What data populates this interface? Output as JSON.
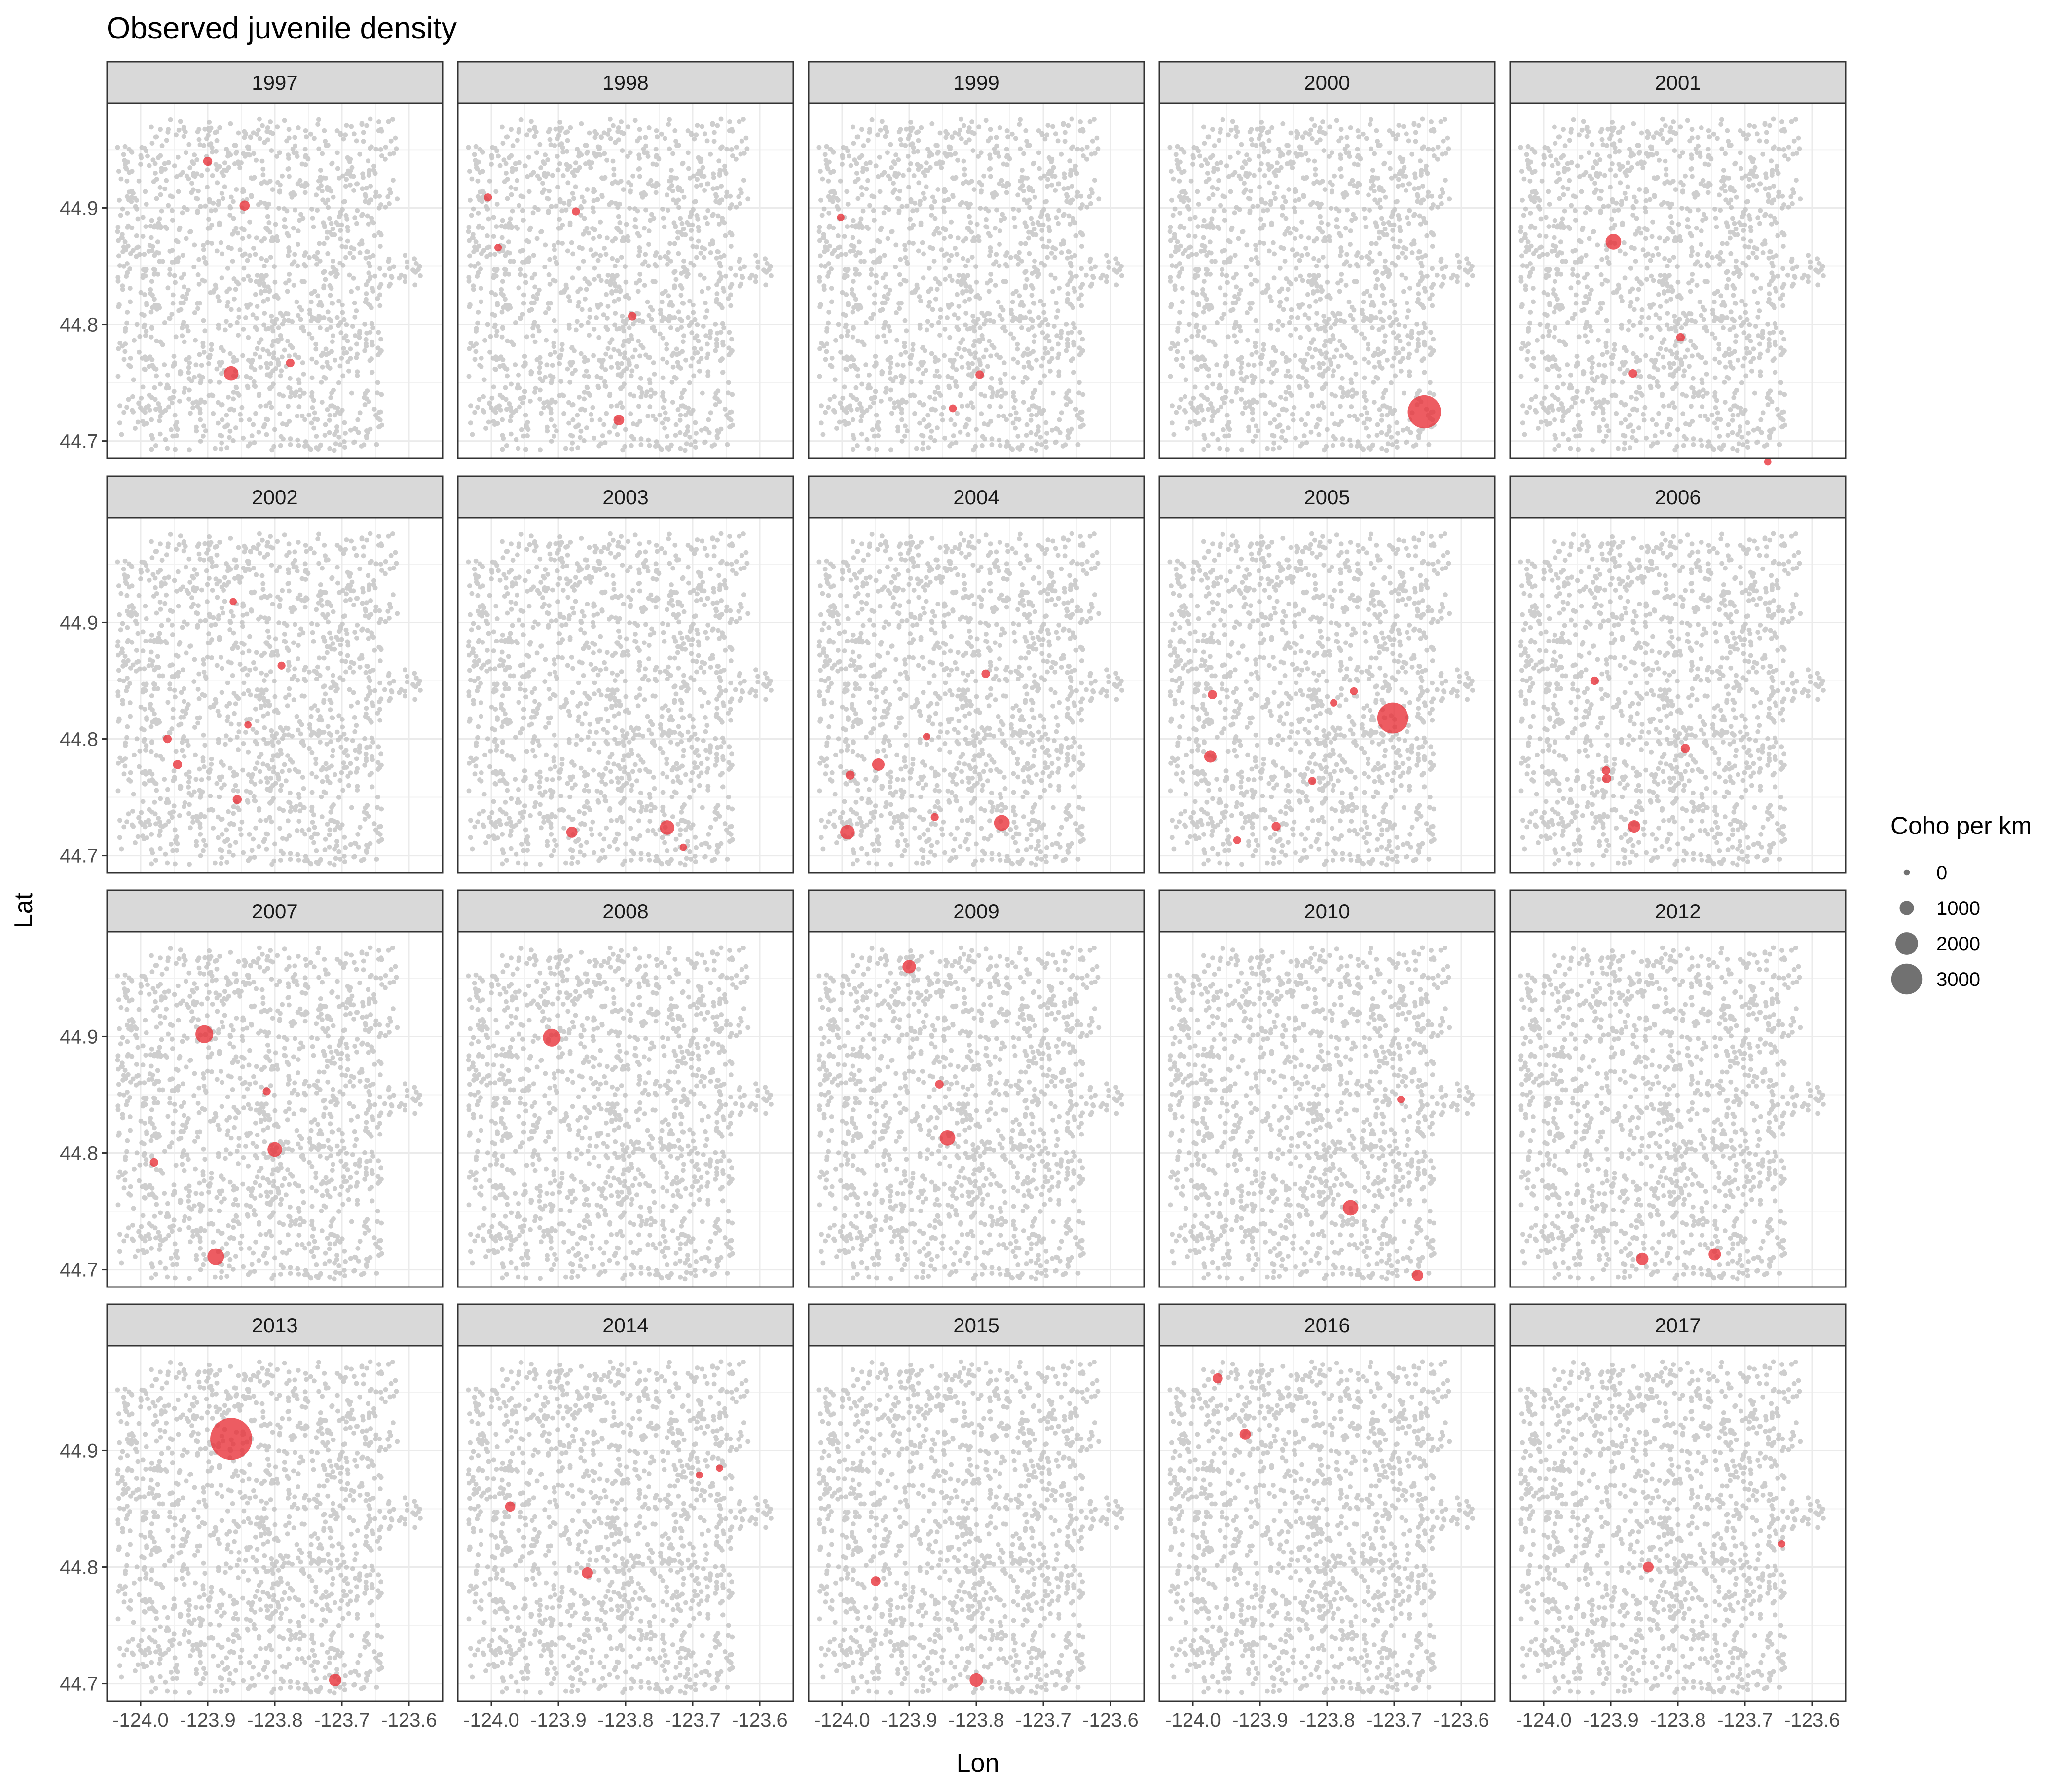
{
  "chart_data": {
    "type": "scatter",
    "title": "Observed juvenile density",
    "xlabel": "Lon",
    "ylabel": "Lat",
    "xlim": [
      -124.05,
      -123.55
    ],
    "ylim": [
      44.685,
      44.99
    ],
    "xticks": [
      -124.0,
      -123.9,
      -123.8,
      -123.7,
      -123.6
    ],
    "xtick_labels": [
      "-124.0",
      "-123.9",
      "-123.8",
      "-123.7",
      "-123.6"
    ],
    "yticks": [
      44.7,
      44.8,
      44.9
    ],
    "ytick_labels": [
      "44.7",
      "44.8",
      "44.9"
    ],
    "facet_layout": {
      "ncol": 5,
      "nrow": 4
    },
    "background_series": {
      "name": "stream sites",
      "color": "#bdbdbd",
      "count": 1400
    },
    "observation_color": "#e8333b",
    "legend": {
      "title": "Coho per km",
      "position": "right",
      "sizes": [
        0,
        1000,
        2000,
        3000
      ],
      "labels": [
        "0",
        "1000",
        "2000",
        "3000"
      ]
    },
    "panels": [
      {
        "year": "1997",
        "points": [
          {
            "lon": -123.9,
            "lat": 44.94,
            "coho": 200
          },
          {
            "lon": -123.845,
            "lat": 44.902,
            "coho": 300
          },
          {
            "lon": -123.865,
            "lat": 44.758,
            "coho": 700
          },
          {
            "lon": -123.777,
            "lat": 44.767,
            "coho": 150
          }
        ]
      },
      {
        "year": "1998",
        "points": [
          {
            "lon": -124.005,
            "lat": 44.909,
            "coho": 100
          },
          {
            "lon": -123.99,
            "lat": 44.866,
            "coho": 50
          },
          {
            "lon": -123.874,
            "lat": 44.897,
            "coho": 100
          },
          {
            "lon": -123.79,
            "lat": 44.807,
            "coho": 150
          },
          {
            "lon": -123.81,
            "lat": 44.718,
            "coho": 350
          }
        ]
      },
      {
        "year": "1999",
        "points": [
          {
            "lon": -124.002,
            "lat": 44.892,
            "coho": 50
          },
          {
            "lon": -123.795,
            "lat": 44.757,
            "coho": 150
          },
          {
            "lon": -123.835,
            "lat": 44.728,
            "coho": 80
          }
        ]
      },
      {
        "year": "2000",
        "points": [
          {
            "lon": -123.655,
            "lat": 44.725,
            "coho": 2400
          }
        ]
      },
      {
        "year": "2001",
        "points": [
          {
            "lon": -123.896,
            "lat": 44.871,
            "coho": 800
          },
          {
            "lon": -123.796,
            "lat": 44.789,
            "coho": 150
          },
          {
            "lon": -123.867,
            "lat": 44.758,
            "coho": 150
          },
          {
            "lon": -123.666,
            "lat": 44.682,
            "coho": 30
          }
        ]
      },
      {
        "year": "2002",
        "points": [
          {
            "lon": -123.862,
            "lat": 44.918,
            "coho": 30
          },
          {
            "lon": -123.79,
            "lat": 44.863,
            "coho": 100
          },
          {
            "lon": -123.96,
            "lat": 44.8,
            "coho": 150
          },
          {
            "lon": -123.945,
            "lat": 44.778,
            "coho": 200
          },
          {
            "lon": -123.84,
            "lat": 44.812,
            "coho": 30
          },
          {
            "lon": -123.856,
            "lat": 44.748,
            "coho": 200
          }
        ]
      },
      {
        "year": "2003",
        "points": [
          {
            "lon": -123.88,
            "lat": 44.72,
            "coho": 400
          },
          {
            "lon": -123.738,
            "lat": 44.724,
            "coho": 700
          },
          {
            "lon": -123.714,
            "lat": 44.707,
            "coho": 30
          }
        ]
      },
      {
        "year": "2004",
        "points": [
          {
            "lon": -123.988,
            "lat": 44.769,
            "coho": 200
          },
          {
            "lon": -123.946,
            "lat": 44.778,
            "coho": 500
          },
          {
            "lon": -123.874,
            "lat": 44.802,
            "coho": 50
          },
          {
            "lon": -123.862,
            "lat": 44.733,
            "coho": 100
          },
          {
            "lon": -123.992,
            "lat": 44.72,
            "coho": 700
          },
          {
            "lon": -123.786,
            "lat": 44.856,
            "coho": 150
          },
          {
            "lon": -123.762,
            "lat": 44.728,
            "coho": 800
          }
        ]
      },
      {
        "year": "2005",
        "points": [
          {
            "lon": -123.971,
            "lat": 44.838,
            "coho": 200
          },
          {
            "lon": -123.974,
            "lat": 44.785,
            "coho": 500
          },
          {
            "lon": -123.934,
            "lat": 44.713,
            "coho": 80
          },
          {
            "lon": -123.876,
            "lat": 44.725,
            "coho": 200
          },
          {
            "lon": -123.822,
            "lat": 44.764,
            "coho": 100
          },
          {
            "lon": -123.79,
            "lat": 44.831,
            "coho": 50
          },
          {
            "lon": -123.76,
            "lat": 44.841,
            "coho": 80
          },
          {
            "lon": -123.702,
            "lat": 44.818,
            "coho": 2200
          }
        ]
      },
      {
        "year": "2006",
        "points": [
          {
            "lon": -123.924,
            "lat": 44.85,
            "coho": 150
          },
          {
            "lon": -123.907,
            "lat": 44.773,
            "coho": 150
          },
          {
            "lon": -123.906,
            "lat": 44.766,
            "coho": 200
          },
          {
            "lon": -123.865,
            "lat": 44.725,
            "coho": 500
          },
          {
            "lon": -123.789,
            "lat": 44.792,
            "coho": 200
          }
        ]
      },
      {
        "year": "2007",
        "points": [
          {
            "lon": -123.98,
            "lat": 44.792,
            "coho": 150
          },
          {
            "lon": -123.905,
            "lat": 44.902,
            "coho": 1000
          },
          {
            "lon": -123.812,
            "lat": 44.853,
            "coho": 100
          },
          {
            "lon": -123.8,
            "lat": 44.803,
            "coho": 700
          },
          {
            "lon": -123.888,
            "lat": 44.711,
            "coho": 900
          }
        ]
      },
      {
        "year": "2008",
        "points": [
          {
            "lon": -123.91,
            "lat": 44.899,
            "coho": 1000
          }
        ]
      },
      {
        "year": "2009",
        "points": [
          {
            "lon": -123.9,
            "lat": 44.96,
            "coho": 600
          },
          {
            "lon": -123.855,
            "lat": 44.859,
            "coho": 150
          },
          {
            "lon": -123.843,
            "lat": 44.813,
            "coho": 800
          }
        ]
      },
      {
        "year": "2010",
        "points": [
          {
            "lon": -123.69,
            "lat": 44.846,
            "coho": 50
          },
          {
            "lon": -123.765,
            "lat": 44.753,
            "coho": 800
          },
          {
            "lon": -123.665,
            "lat": 44.695,
            "coho": 400
          }
        ]
      },
      {
        "year": "2012",
        "points": [
          {
            "lon": -123.853,
            "lat": 44.709,
            "coho": 500
          },
          {
            "lon": -123.745,
            "lat": 44.713,
            "coho": 500
          }
        ]
      },
      {
        "year": "2013",
        "points": [
          {
            "lon": -123.865,
            "lat": 44.91,
            "coho": 3200
          },
          {
            "lon": -123.71,
            "lat": 44.703,
            "coho": 500
          }
        ]
      },
      {
        "year": "2014",
        "points": [
          {
            "lon": -123.972,
            "lat": 44.852,
            "coho": 300
          },
          {
            "lon": -123.857,
            "lat": 44.795,
            "coho": 400
          },
          {
            "lon": -123.69,
            "lat": 44.879,
            "coho": 30
          },
          {
            "lon": -123.66,
            "lat": 44.885,
            "coho": 30
          }
        ]
      },
      {
        "year": "2015",
        "points": [
          {
            "lon": -123.95,
            "lat": 44.788,
            "coho": 250
          },
          {
            "lon": -123.8,
            "lat": 44.703,
            "coho": 600
          }
        ]
      },
      {
        "year": "2016",
        "points": [
          {
            "lon": -123.963,
            "lat": 44.962,
            "coho": 300
          },
          {
            "lon": -123.922,
            "lat": 44.914,
            "coho": 400
          }
        ]
      },
      {
        "year": "2017",
        "points": [
          {
            "lon": -123.844,
            "lat": 44.8,
            "coho": 350
          },
          {
            "lon": -123.645,
            "lat": 44.82,
            "coho": 30
          }
        ]
      }
    ]
  }
}
